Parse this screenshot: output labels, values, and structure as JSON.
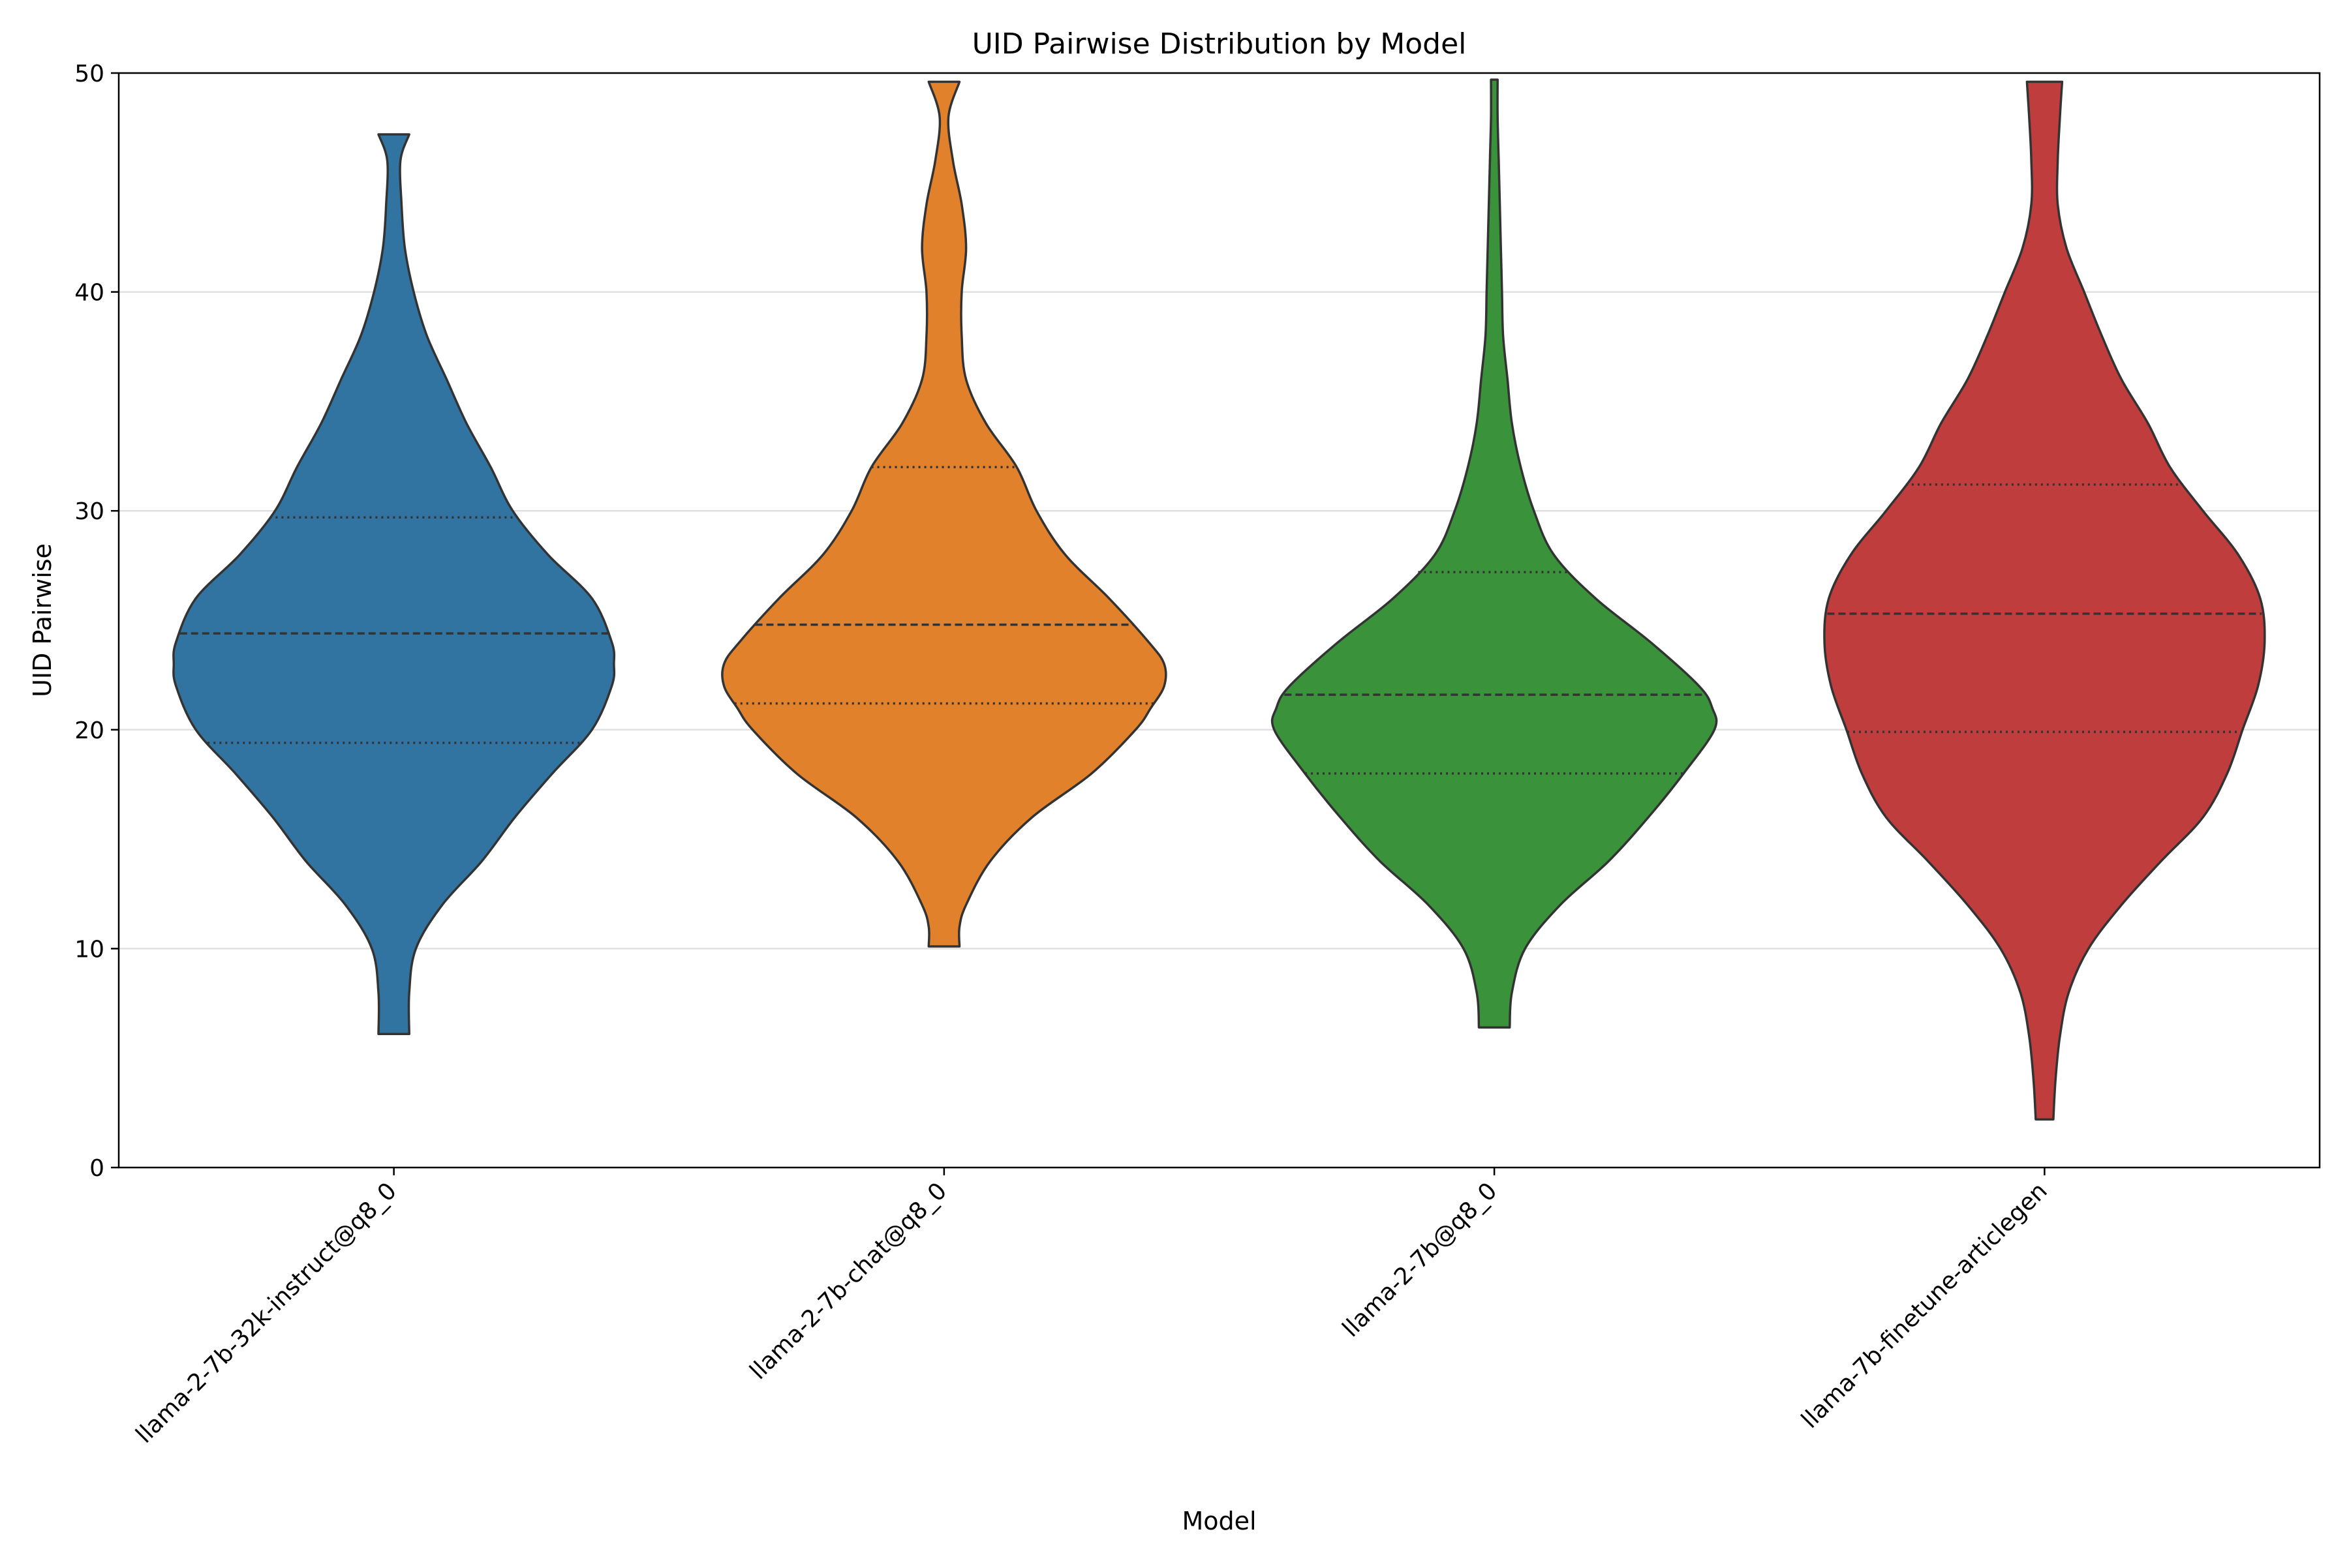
{
  "chart_data": {
    "type": "violin",
    "title": "UID Pairwise Distribution by Model",
    "xlabel": "Model",
    "ylabel": "UID Pairwise",
    "ylim": [
      0,
      50
    ],
    "yticks": [
      0,
      10,
      20,
      30,
      40,
      50
    ],
    "grid": "y",
    "inner": "quartiles",
    "categories": [
      "llama-2-7b-32k-instruct@q8_0",
      "llama-2-7b-chat@q8_0",
      "llama-2-7b@q8_0",
      "llama-7b-finetune-articlegen"
    ],
    "colors": [
      "#3274a1",
      "#e1812c",
      "#3a923a",
      "#c03d3e"
    ],
    "series": [
      {
        "color": "#3274a1",
        "min": 6.1,
        "max": 47.2,
        "q1": 19.4,
        "median": 24.4,
        "q3": 29.7,
        "density": [
          [
            6.1,
            0.07
          ],
          [
            8,
            0.07
          ],
          [
            10,
            0.1
          ],
          [
            12,
            0.22
          ],
          [
            14,
            0.4
          ],
          [
            16,
            0.55
          ],
          [
            18,
            0.72
          ],
          [
            20,
            0.9
          ],
          [
            22,
            0.99
          ],
          [
            23,
            1.0
          ],
          [
            24,
            0.99
          ],
          [
            26,
            0.9
          ],
          [
            28,
            0.7
          ],
          [
            30,
            0.54
          ],
          [
            32,
            0.44
          ],
          [
            34,
            0.33
          ],
          [
            36,
            0.24
          ],
          [
            38,
            0.15
          ],
          [
            40,
            0.09
          ],
          [
            42,
            0.05
          ],
          [
            44,
            0.035
          ],
          [
            46,
            0.03
          ],
          [
            47.2,
            0.07
          ]
        ]
      },
      {
        "color": "#e1812c",
        "min": 10.1,
        "max": 49.6,
        "q1": 21.2,
        "median": 24.8,
        "q3": 32.0,
        "density": [
          [
            10.1,
            0.07
          ],
          [
            11,
            0.07
          ],
          [
            12,
            0.1
          ],
          [
            14,
            0.21
          ],
          [
            16,
            0.4
          ],
          [
            18,
            0.67
          ],
          [
            20,
            0.87
          ],
          [
            21,
            0.94
          ],
          [
            22,
            1.0
          ],
          [
            23,
            1.0
          ],
          [
            24,
            0.93
          ],
          [
            26,
            0.75
          ],
          [
            28,
            0.55
          ],
          [
            30,
            0.42
          ],
          [
            32,
            0.33
          ],
          [
            34,
            0.19
          ],
          [
            36,
            0.1
          ],
          [
            38,
            0.08
          ],
          [
            40,
            0.08
          ],
          [
            42,
            0.1
          ],
          [
            44,
            0.08
          ],
          [
            46,
            0.04
          ],
          [
            48,
            0.02
          ],
          [
            49.6,
            0.07
          ]
        ]
      },
      {
        "color": "#3a923a",
        "min": 6.4,
        "max": 49.7,
        "q1": 18.0,
        "median": 21.6,
        "q3": 27.2,
        "density": [
          [
            6.4,
            0.07
          ],
          [
            8,
            0.08
          ],
          [
            10,
            0.14
          ],
          [
            12,
            0.3
          ],
          [
            14,
            0.52
          ],
          [
            16,
            0.7
          ],
          [
            18,
            0.86
          ],
          [
            20,
            1.0
          ],
          [
            21,
            0.99
          ],
          [
            22,
            0.93
          ],
          [
            24,
            0.71
          ],
          [
            26,
            0.46
          ],
          [
            28,
            0.27
          ],
          [
            30,
            0.18
          ],
          [
            32,
            0.12
          ],
          [
            34,
            0.08
          ],
          [
            36,
            0.06
          ],
          [
            38,
            0.04
          ],
          [
            40,
            0.035
          ],
          [
            42,
            0.03
          ],
          [
            44,
            0.025
          ],
          [
            46,
            0.02
          ],
          [
            48,
            0.015
          ],
          [
            49.7,
            0.015
          ]
        ]
      },
      {
        "color": "#c03d3e",
        "min": 2.2,
        "max": 49.6,
        "q1": 19.9,
        "median": 25.3,
        "q3": 31.2,
        "density": [
          [
            2.2,
            0.04
          ],
          [
            4,
            0.05
          ],
          [
            6,
            0.07
          ],
          [
            8,
            0.11
          ],
          [
            10,
            0.2
          ],
          [
            12,
            0.35
          ],
          [
            14,
            0.53
          ],
          [
            16,
            0.72
          ],
          [
            18,
            0.83
          ],
          [
            20,
            0.9
          ],
          [
            22,
            0.97
          ],
          [
            24,
            1.0
          ],
          [
            26,
            0.98
          ],
          [
            28,
            0.88
          ],
          [
            30,
            0.72
          ],
          [
            32,
            0.57
          ],
          [
            34,
            0.47
          ],
          [
            36,
            0.35
          ],
          [
            38,
            0.26
          ],
          [
            40,
            0.18
          ],
          [
            42,
            0.1
          ],
          [
            44,
            0.06
          ],
          [
            46,
            0.06
          ],
          [
            48,
            0.07
          ],
          [
            49.6,
            0.08
          ]
        ]
      }
    ]
  }
}
